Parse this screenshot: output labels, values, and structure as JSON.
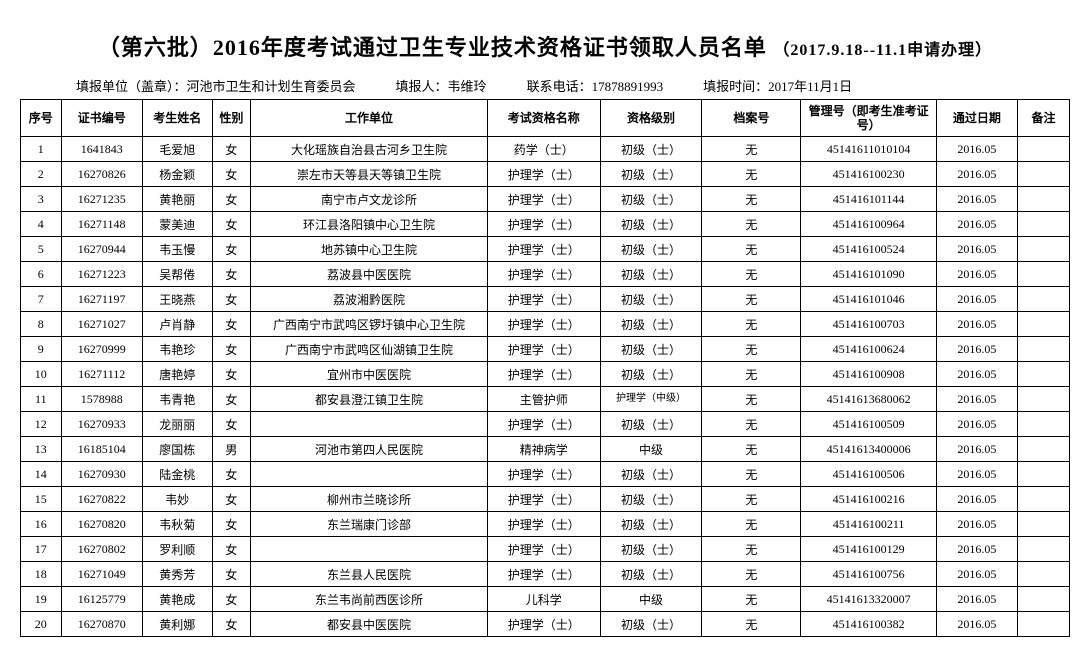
{
  "title_main": "（第六批）2016年度考试通过卫生专业技术资格证书领取人员名单",
  "title_tail": "（2017.9.18--11.1申请办理）",
  "meta": {
    "org_label": "填报单位（盖章）：",
    "org_value": "河池市卫生和计划生育委员会",
    "reporter_label": "填报人：",
    "reporter_value": "韦维玲",
    "phone_label": "联系电话：",
    "phone_value": "17878891993",
    "time_label": "填报时间：",
    "time_value": "2017年11月1日"
  },
  "columns": [
    "序号",
    "证书编号",
    "考生姓名",
    "性别",
    "工作单位",
    "考试资格名称",
    "资格级别",
    "档案号",
    "管理号（即考生准考证号）",
    "通过日期",
    "备注"
  ],
  "rows": [
    [
      "1",
      "1641843",
      "毛爱旭",
      "女",
      "大化瑶族自治县古河乡卫生院",
      "药学（士）",
      "初级（士）",
      "无",
      "45141611010104",
      "2016.05",
      ""
    ],
    [
      "2",
      "16270826",
      "杨金颖",
      "女",
      "崇左市天等县天等镇卫生院",
      "护理学（士）",
      "初级（士）",
      "无",
      "451416100230",
      "2016.05",
      ""
    ],
    [
      "3",
      "16271235",
      "黄艳丽",
      "女",
      "南宁市卢文龙诊所",
      "护理学（士）",
      "初级（士）",
      "无",
      "451416101144",
      "2016.05",
      ""
    ],
    [
      "4",
      "16271148",
      "蒙美迪",
      "女",
      "环江县洛阳镇中心卫生院",
      "护理学（士）",
      "初级（士）",
      "无",
      "451416100964",
      "2016.05",
      ""
    ],
    [
      "5",
      "16270944",
      "韦玉慢",
      "女",
      "地苏镇中心卫生院",
      "护理学（士）",
      "初级（士）",
      "无",
      "451416100524",
      "2016.05",
      ""
    ],
    [
      "6",
      "16271223",
      "吴帮倦",
      "女",
      "荔波县中医医院",
      "护理学（士）",
      "初级（士）",
      "无",
      "451416101090",
      "2016.05",
      ""
    ],
    [
      "7",
      "16271197",
      "王晓燕",
      "女",
      "荔波湘黔医院",
      "护理学（士）",
      "初级（士）",
      "无",
      "451416101046",
      "2016.05",
      ""
    ],
    [
      "8",
      "16271027",
      "卢肖静",
      "女",
      "广西南宁市武鸣区锣圩镇中心卫生院",
      "护理学（士）",
      "初级（士）",
      "无",
      "451416100703",
      "2016.05",
      ""
    ],
    [
      "9",
      "16270999",
      "韦艳珍",
      "女",
      "广西南宁市武鸣区仙湖镇卫生院",
      "护理学（士）",
      "初级（士）",
      "无",
      "451416100624",
      "2016.05",
      ""
    ],
    [
      "10",
      "16271112",
      "唐艳婷",
      "女",
      "宜州市中医医院",
      "护理学（士）",
      "初级（士）",
      "无",
      "451416100908",
      "2016.05",
      ""
    ],
    [
      "11",
      "1578988",
      "韦青艳",
      "女",
      "都安县澄江镇卫生院",
      "主管护师",
      "护理学（中级）",
      "无",
      "45141613680062",
      "2016.05",
      ""
    ],
    [
      "12",
      "16270933",
      "龙丽丽",
      "女",
      "",
      "护理学（士）",
      "初级（士）",
      "无",
      "451416100509",
      "2016.05",
      ""
    ],
    [
      "13",
      "16185104",
      "廖国栋",
      "男",
      "河池市第四人民医院",
      "精神病学",
      "中级",
      "无",
      "45141613400006",
      "2016.05",
      ""
    ],
    [
      "14",
      "16270930",
      "陆金桃",
      "女",
      "",
      "护理学（士）",
      "初级（士）",
      "无",
      "451416100506",
      "2016.05",
      ""
    ],
    [
      "15",
      "16270822",
      "韦妙",
      "女",
      "柳州市兰晓诊所",
      "护理学（士）",
      "初级（士）",
      "无",
      "451416100216",
      "2016.05",
      ""
    ],
    [
      "16",
      "16270820",
      "韦秋菊",
      "女",
      "东兰瑞康门诊部",
      "护理学（士）",
      "初级（士）",
      "无",
      "451416100211",
      "2016.05",
      ""
    ],
    [
      "17",
      "16270802",
      "罗利顺",
      "女",
      "",
      "护理学（士）",
      "初级（士）",
      "无",
      "451416100129",
      "2016.05",
      ""
    ],
    [
      "18",
      "16271049",
      "黄秀芳",
      "女",
      "东兰县人民医院",
      "护理学（士）",
      "初级（士）",
      "无",
      "451416100756",
      "2016.05",
      ""
    ],
    [
      "19",
      "16125779",
      "黄艳成",
      "女",
      "东兰韦尚前西医诊所",
      "儿科学",
      "中级",
      "无",
      "45141613320007",
      "2016.05",
      ""
    ],
    [
      "20",
      "16270870",
      "黄利娜",
      "女",
      "都安县中医医院",
      "护理学（士）",
      "初级（士）",
      "无",
      "451416100382",
      "2016.05",
      ""
    ]
  ],
  "wrap_level_rows": [
    11
  ]
}
